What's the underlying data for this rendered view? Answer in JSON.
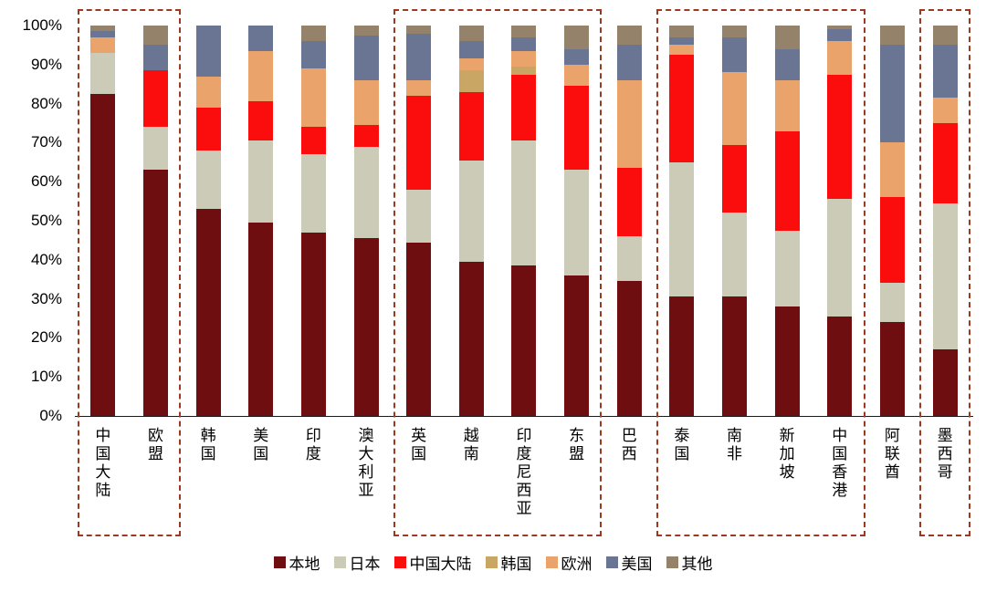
{
  "chart_data": {
    "type": "bar",
    "variant": "stacked-100-percent",
    "title": "",
    "grid": false,
    "legend_position": "bottom",
    "ylim": [
      0,
      100
    ],
    "y_ticks": [
      "100%",
      "90%",
      "80%",
      "70%",
      "60%",
      "50%",
      "40%",
      "30%",
      "20%",
      "10%",
      "0%"
    ],
    "categories": [
      "中国大陆",
      "欧盟",
      "韩国",
      "美国",
      "印度",
      "澳大利亚",
      "英国",
      "越南",
      "印度尼西亚",
      "东盟",
      "巴西",
      "泰国",
      "南非",
      "新加坡",
      "中国香港",
      "阿联酋",
      "墨西哥"
    ],
    "series": [
      {
        "name": "本地",
        "color": "#6e0e10",
        "values": [
          82.5,
          63,
          53,
          49.5,
          47,
          45.5,
          44.5,
          39.5,
          38.5,
          36,
          34.5,
          30.5,
          30.5,
          28,
          25.5,
          24,
          17
        ]
      },
      {
        "name": "日本",
        "color": "#cccbb8",
        "values": [
          10.5,
          11,
          15,
          21,
          20,
          23.5,
          13.5,
          26,
          32,
          27,
          11.5,
          34.5,
          21.5,
          19.5,
          30,
          10,
          37.5
        ]
      },
      {
        "name": "中国大陆",
        "color": "#fa0d0c",
        "values": [
          0,
          14.5,
          11,
          10,
          7,
          5.5,
          24,
          17.5,
          17,
          21.5,
          17.5,
          27.5,
          17.5,
          25.5,
          32,
          22,
          20.5
        ]
      },
      {
        "name": "韩国",
        "color": "#c9a663",
        "values": [
          0,
          0,
          0,
          0,
          0,
          0,
          0,
          5.5,
          2,
          0,
          0,
          0,
          0,
          0,
          0,
          0,
          0
        ]
      },
      {
        "name": "欧洲",
        "color": "#eba36c",
        "values": [
          4,
          0,
          8,
          13,
          15,
          11.5,
          4,
          3,
          4,
          5.5,
          22.5,
          2.5,
          18.5,
          13,
          8.5,
          14,
          6.5
        ]
      },
      {
        "name": "美国",
        "color": "#6a7594",
        "values": [
          1.5,
          6.5,
          13,
          6.5,
          7,
          11.5,
          12,
          4.5,
          3.5,
          4,
          9,
          2,
          9,
          8,
          3,
          25,
          13.5
        ]
      },
      {
        "name": "其他",
        "color": "#95826b",
        "values": [
          1.5,
          5,
          0,
          0,
          4,
          2.5,
          2,
          4,
          3,
          6,
          5,
          3,
          3,
          6,
          1,
          5,
          5
        ]
      }
    ],
    "highlight_boxes": [
      {
        "from": 0,
        "to": 1
      },
      {
        "from": 6,
        "to": 9
      },
      {
        "from": 11,
        "to": 14
      },
      {
        "from": 16,
        "to": 16
      }
    ],
    "highlight_color": "#9c3a21"
  }
}
